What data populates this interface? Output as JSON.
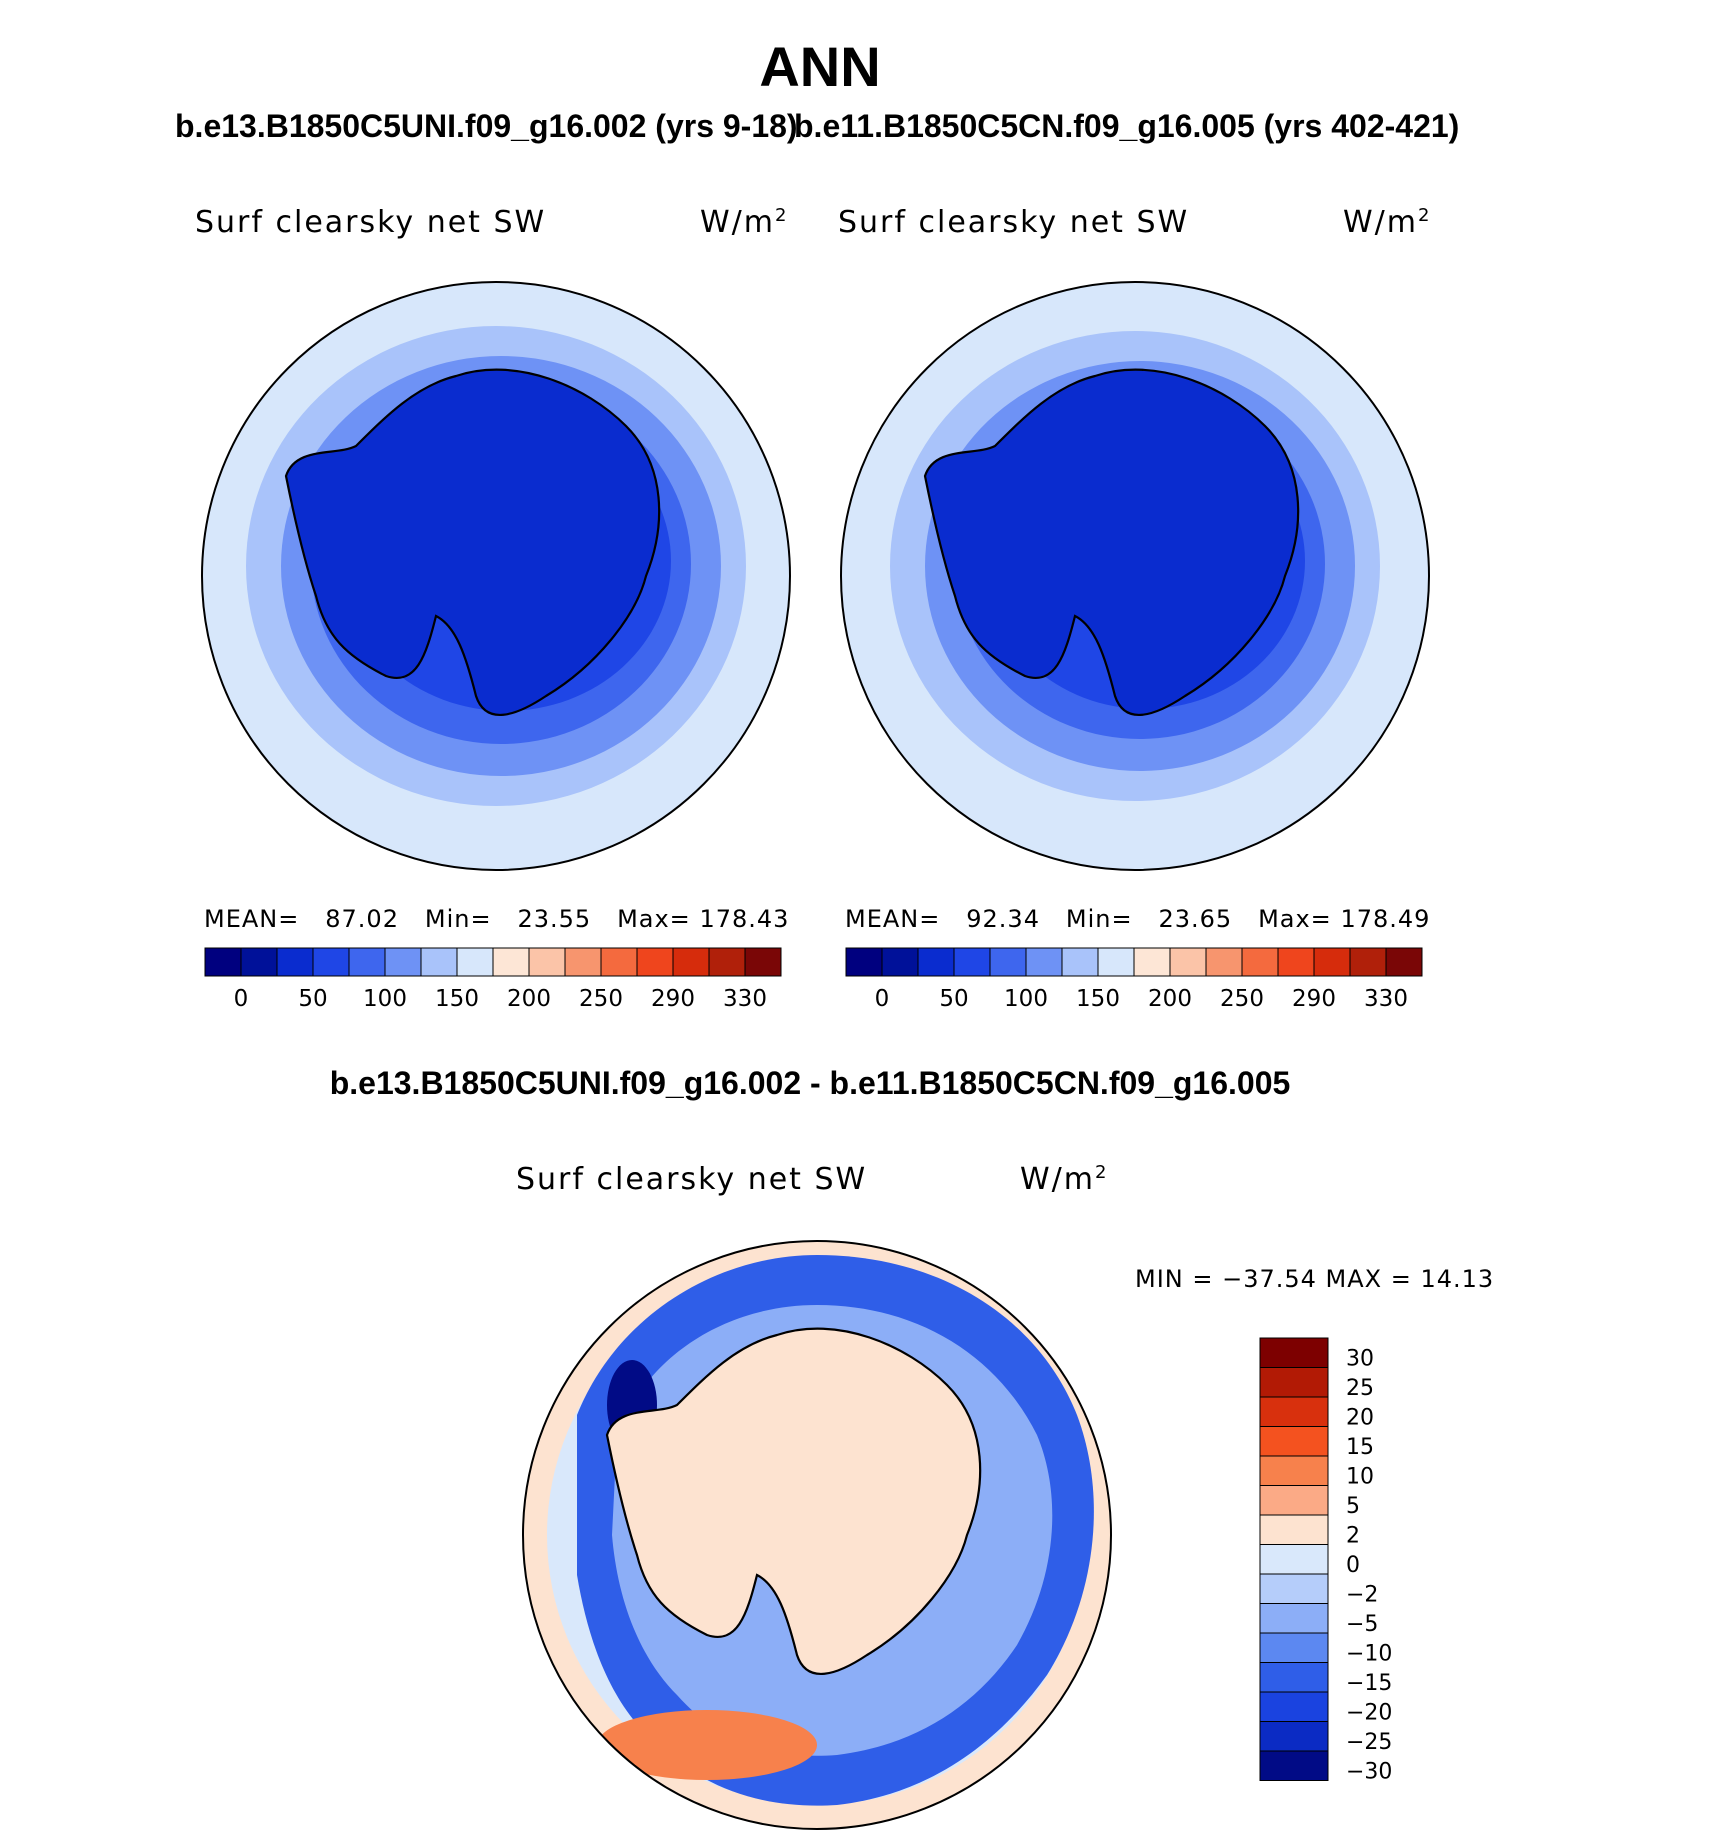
{
  "figure": {
    "title": "ANN",
    "case1": "b.e13.B1850C5UNI.f09_g16.002 (yrs 9-18)",
    "case2": "b.e11.B1850C5CN.f09_g16.005 (yrs 402-421)",
    "diff_title": "b.e13.B1850C5UNI.f09_g16.002 - b.e11.B1850C5CN.f09_g16.005"
  },
  "panels": [
    {
      "variable": "Surf  clearsky  net  SW",
      "units_base": "W/m",
      "units_exp": "2",
      "mean_label": "MEAN=",
      "mean": "87.02",
      "min_label": "Min=",
      "min": "23.55",
      "max_label": "Max=",
      "max": "178.43"
    },
    {
      "variable": "Surf  clearsky  net  SW",
      "units_base": "W/m",
      "units_exp": "2",
      "mean_label": "MEAN=",
      "mean": "92.34",
      "min_label": "Min=",
      "min": "23.65",
      "max_label": "Max=",
      "max": "178.49"
    }
  ],
  "diff_panel": {
    "variable": "Surf  clearsky  net  SW",
    "units_base": "W/m",
    "units_exp": "2",
    "minmax": "MIN  =  −37.54  MAX  =    14.13"
  },
  "abs_colorbar": {
    "colors": [
      "#00007f",
      "#001199",
      "#0a2ccf",
      "#1f46e6",
      "#3e66ee",
      "#6e92f5",
      "#a9c3fa",
      "#d7e7fb",
      "#fde6d6",
      "#fbc4a8",
      "#f7956e",
      "#f46a3e",
      "#ef451d",
      "#d62c0c",
      "#b0200a",
      "#7a0606"
    ],
    "labels": [
      "0",
      "50",
      "100",
      "150",
      "200",
      "250",
      "290",
      "330"
    ]
  },
  "diff_colorbar": {
    "colors": [
      "#7d0000",
      "#b21a05",
      "#d8300d",
      "#f4521f",
      "#f7814c",
      "#fbaa86",
      "#fde3d0",
      "#d9e8fb",
      "#b5cdfa",
      "#8caef7",
      "#5c88f1",
      "#2f5ee8",
      "#1a43e0",
      "#0b2bc4",
      "#010b86"
    ],
    "labels": [
      "30",
      "25",
      "20",
      "15",
      "10",
      "5",
      "2",
      "0",
      "−2",
      "−5",
      "−10",
      "−15",
      "−20",
      "−25",
      "−30"
    ]
  }
}
